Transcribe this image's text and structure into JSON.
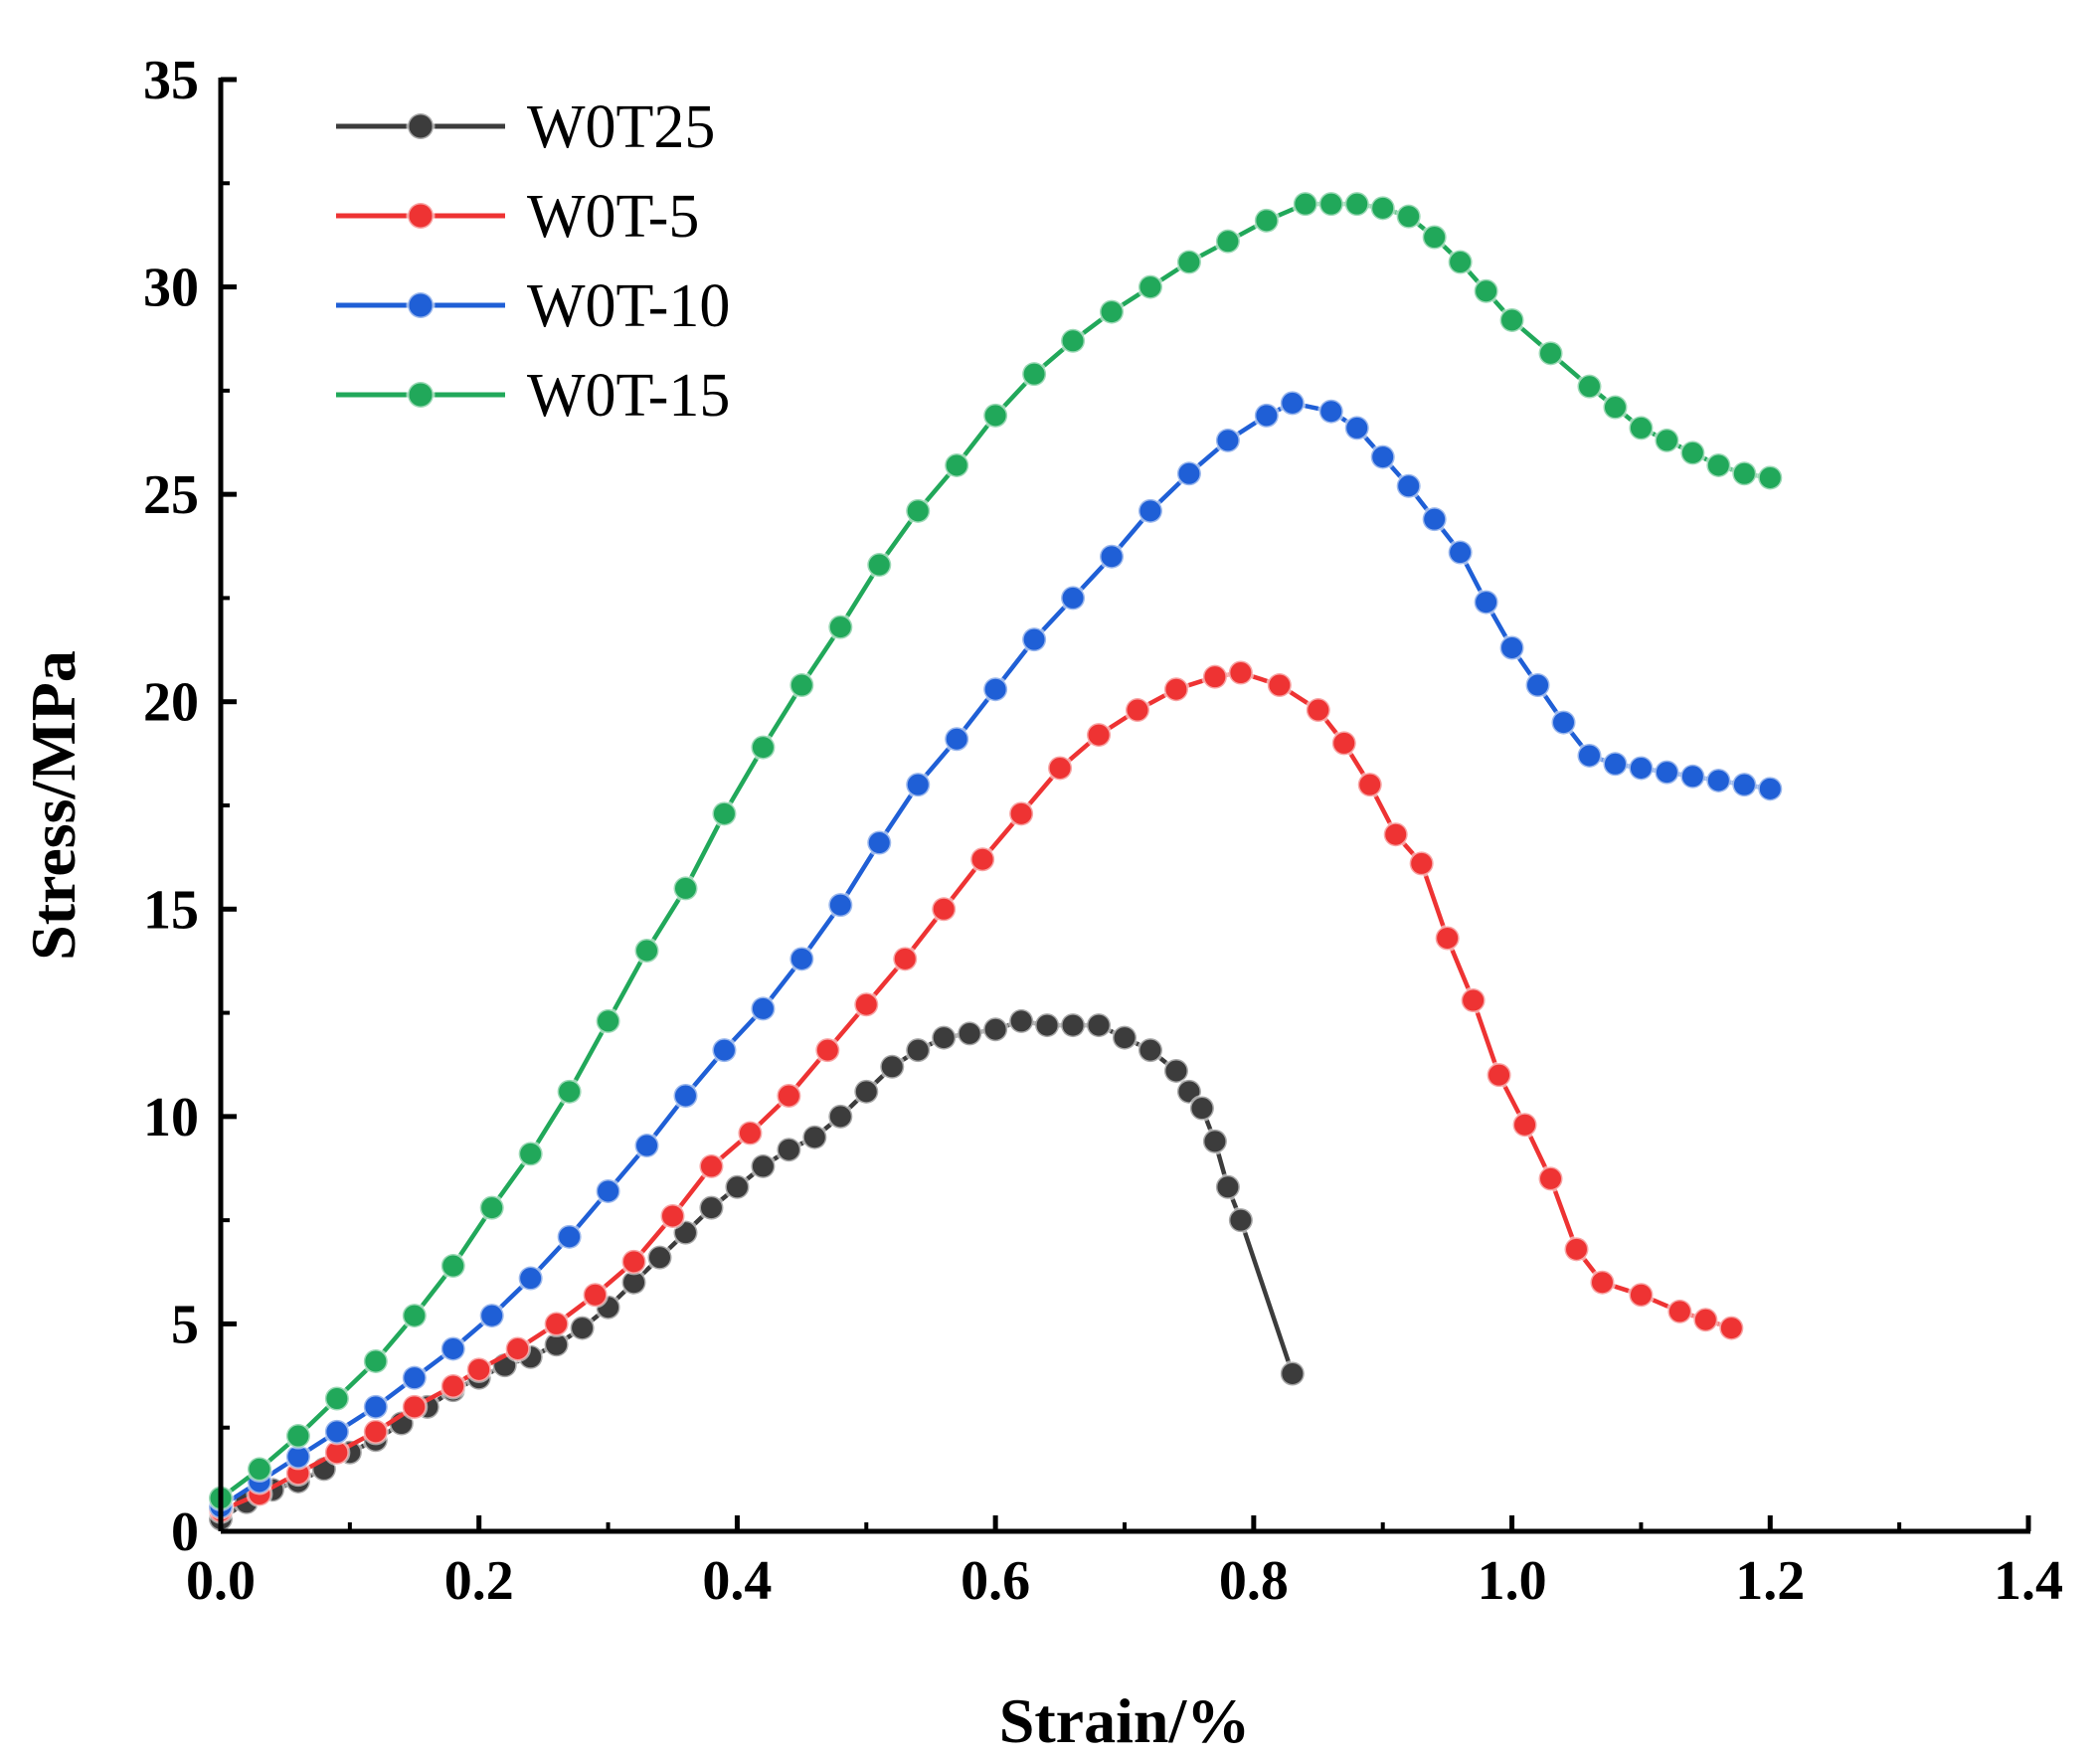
{
  "chart_data": {
    "type": "line",
    "xlabel": "Strain/%",
    "ylabel": "Stress/MPa",
    "xlim": [
      0,
      1.4
    ],
    "ylim": [
      0,
      35
    ],
    "xticks": [
      "0.0",
      "0.2",
      "0.4",
      "0.6",
      "0.8",
      "1.0",
      "1.2",
      "1.4"
    ],
    "yticks": [
      "0",
      "5",
      "10",
      "15",
      "20",
      "25",
      "30",
      "35"
    ],
    "legend_position": "top-left",
    "grid": false,
    "series": [
      {
        "name": "W0T25",
        "color": "#3c3c3c",
        "points": [
          [
            0,
            0.3
          ],
          [
            0.02,
            0.7
          ],
          [
            0.04,
            1.0
          ],
          [
            0.06,
            1.2
          ],
          [
            0.08,
            1.5
          ],
          [
            0.1,
            1.9
          ],
          [
            0.12,
            2.2
          ],
          [
            0.14,
            2.6
          ],
          [
            0.16,
            3.0
          ],
          [
            0.18,
            3.4
          ],
          [
            0.2,
            3.7
          ],
          [
            0.22,
            4.0
          ],
          [
            0.24,
            4.2
          ],
          [
            0.26,
            4.5
          ],
          [
            0.28,
            4.9
          ],
          [
            0.3,
            5.4
          ],
          [
            0.32,
            6.0
          ],
          [
            0.34,
            6.6
          ],
          [
            0.36,
            7.2
          ],
          [
            0.38,
            7.8
          ],
          [
            0.4,
            8.3
          ],
          [
            0.42,
            8.8
          ],
          [
            0.44,
            9.2
          ],
          [
            0.46,
            9.5
          ],
          [
            0.48,
            10.0
          ],
          [
            0.5,
            10.6
          ],
          [
            0.52,
            11.2
          ],
          [
            0.54,
            11.6
          ],
          [
            0.56,
            11.9
          ],
          [
            0.58,
            12.0
          ],
          [
            0.6,
            12.1
          ],
          [
            0.62,
            12.3
          ],
          [
            0.64,
            12.2
          ],
          [
            0.66,
            12.2
          ],
          [
            0.68,
            12.2
          ],
          [
            0.7,
            11.9
          ],
          [
            0.72,
            11.6
          ],
          [
            0.74,
            11.1
          ],
          [
            0.75,
            10.6
          ],
          [
            0.76,
            10.2
          ],
          [
            0.77,
            9.4
          ],
          [
            0.78,
            8.3
          ],
          [
            0.79,
            7.5
          ],
          [
            0.83,
            3.8
          ]
        ]
      },
      {
        "name": "W0T-5",
        "color": "#ee3333",
        "points": [
          [
            0,
            0.5
          ],
          [
            0.03,
            0.9
          ],
          [
            0.06,
            1.4
          ],
          [
            0.09,
            1.9
          ],
          [
            0.12,
            2.4
          ],
          [
            0.15,
            3.0
          ],
          [
            0.18,
            3.5
          ],
          [
            0.2,
            3.9
          ],
          [
            0.23,
            4.4
          ],
          [
            0.26,
            5.0
          ],
          [
            0.29,
            5.7
          ],
          [
            0.32,
            6.5
          ],
          [
            0.35,
            7.6
          ],
          [
            0.38,
            8.8
          ],
          [
            0.41,
            9.6
          ],
          [
            0.44,
            10.5
          ],
          [
            0.47,
            11.6
          ],
          [
            0.5,
            12.7
          ],
          [
            0.53,
            13.8
          ],
          [
            0.56,
            15.0
          ],
          [
            0.59,
            16.2
          ],
          [
            0.62,
            17.3
          ],
          [
            0.65,
            18.4
          ],
          [
            0.68,
            19.2
          ],
          [
            0.71,
            19.8
          ],
          [
            0.74,
            20.3
          ],
          [
            0.77,
            20.6
          ],
          [
            0.79,
            20.7
          ],
          [
            0.82,
            20.4
          ],
          [
            0.85,
            19.8
          ],
          [
            0.87,
            19.0
          ],
          [
            0.89,
            18.0
          ],
          [
            0.91,
            16.8
          ],
          [
            0.93,
            16.1
          ],
          [
            0.95,
            14.3
          ],
          [
            0.97,
            12.8
          ],
          [
            0.99,
            11.0
          ],
          [
            1.01,
            9.8
          ],
          [
            1.03,
            8.5
          ],
          [
            1.05,
            6.8
          ],
          [
            1.07,
            6.0
          ],
          [
            1.1,
            5.7
          ],
          [
            1.13,
            5.3
          ],
          [
            1.15,
            5.1
          ],
          [
            1.17,
            4.9
          ]
        ]
      },
      {
        "name": "W0T-10",
        "color": "#1f5fd6",
        "points": [
          [
            0,
            0.6
          ],
          [
            0.03,
            1.2
          ],
          [
            0.06,
            1.8
          ],
          [
            0.09,
            2.4
          ],
          [
            0.12,
            3.0
          ],
          [
            0.15,
            3.7
          ],
          [
            0.18,
            4.4
          ],
          [
            0.21,
            5.2
          ],
          [
            0.24,
            6.1
          ],
          [
            0.27,
            7.1
          ],
          [
            0.3,
            8.2
          ],
          [
            0.33,
            9.3
          ],
          [
            0.36,
            10.5
          ],
          [
            0.39,
            11.6
          ],
          [
            0.42,
            12.6
          ],
          [
            0.45,
            13.8
          ],
          [
            0.48,
            15.1
          ],
          [
            0.51,
            16.6
          ],
          [
            0.54,
            18.0
          ],
          [
            0.57,
            19.1
          ],
          [
            0.6,
            20.3
          ],
          [
            0.63,
            21.5
          ],
          [
            0.66,
            22.5
          ],
          [
            0.69,
            23.5
          ],
          [
            0.72,
            24.6
          ],
          [
            0.75,
            25.5
          ],
          [
            0.78,
            26.3
          ],
          [
            0.81,
            26.9
          ],
          [
            0.83,
            27.2
          ],
          [
            0.86,
            27.0
          ],
          [
            0.88,
            26.6
          ],
          [
            0.9,
            25.9
          ],
          [
            0.92,
            25.2
          ],
          [
            0.94,
            24.4
          ],
          [
            0.96,
            23.6
          ],
          [
            0.98,
            22.4
          ],
          [
            1.0,
            21.3
          ],
          [
            1.02,
            20.4
          ],
          [
            1.04,
            19.5
          ],
          [
            1.06,
            18.7
          ],
          [
            1.08,
            18.5
          ],
          [
            1.1,
            18.4
          ],
          [
            1.12,
            18.3
          ],
          [
            1.14,
            18.2
          ],
          [
            1.16,
            18.1
          ],
          [
            1.18,
            18.0
          ],
          [
            1.2,
            17.9
          ]
        ]
      },
      {
        "name": "W0T-15",
        "color": "#21a85a",
        "points": [
          [
            0,
            0.8
          ],
          [
            0.03,
            1.5
          ],
          [
            0.06,
            2.3
          ],
          [
            0.09,
            3.2
          ],
          [
            0.12,
            4.1
          ],
          [
            0.15,
            5.2
          ],
          [
            0.18,
            6.4
          ],
          [
            0.21,
            7.8
          ],
          [
            0.24,
            9.1
          ],
          [
            0.27,
            10.6
          ],
          [
            0.3,
            12.3
          ],
          [
            0.33,
            14.0
          ],
          [
            0.36,
            15.5
          ],
          [
            0.39,
            17.3
          ],
          [
            0.42,
            18.9
          ],
          [
            0.45,
            20.4
          ],
          [
            0.48,
            21.8
          ],
          [
            0.51,
            23.3
          ],
          [
            0.54,
            24.6
          ],
          [
            0.57,
            25.7
          ],
          [
            0.6,
            26.9
          ],
          [
            0.63,
            27.9
          ],
          [
            0.66,
            28.7
          ],
          [
            0.69,
            29.4
          ],
          [
            0.72,
            30.0
          ],
          [
            0.75,
            30.6
          ],
          [
            0.78,
            31.1
          ],
          [
            0.81,
            31.6
          ],
          [
            0.84,
            32.0
          ],
          [
            0.86,
            32.0
          ],
          [
            0.88,
            32.0
          ],
          [
            0.9,
            31.9
          ],
          [
            0.92,
            31.7
          ],
          [
            0.94,
            31.2
          ],
          [
            0.96,
            30.6
          ],
          [
            0.98,
            29.9
          ],
          [
            1.0,
            29.2
          ],
          [
            1.03,
            28.4
          ],
          [
            1.06,
            27.6
          ],
          [
            1.08,
            27.1
          ],
          [
            1.1,
            26.6
          ],
          [
            1.12,
            26.3
          ],
          [
            1.14,
            26.0
          ],
          [
            1.16,
            25.7
          ],
          [
            1.18,
            25.5
          ],
          [
            1.2,
            25.4
          ]
        ]
      }
    ]
  }
}
